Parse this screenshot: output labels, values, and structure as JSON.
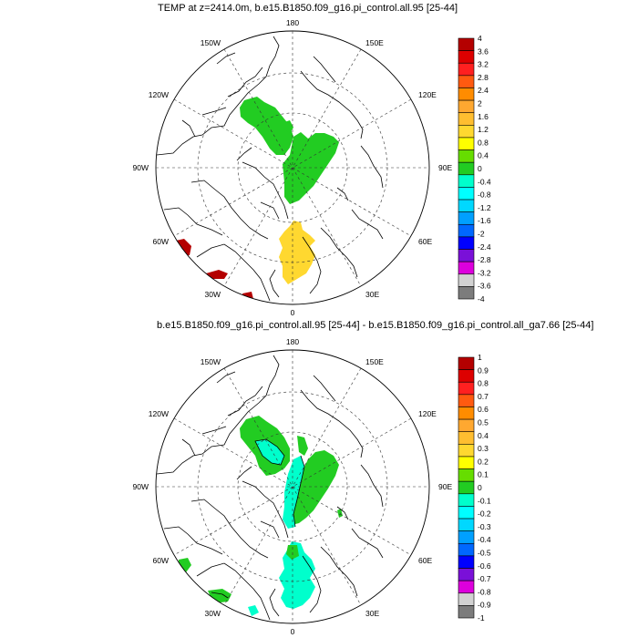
{
  "panels": [
    {
      "title": "TEMP at z=2414.0m, b.e15.B1850.f09_g16.pi_control.all.95 [25-44]",
      "lon_labels": [
        "180",
        "150E",
        "120E",
        "90E",
        "60E",
        "30E",
        "0",
        "30W",
        "60W",
        "90W",
        "120W",
        "150W"
      ],
      "colorbar": {
        "labels": [
          "4",
          "3.6",
          "3.2",
          "2.8",
          "2.4",
          "2",
          "1.6",
          "1.2",
          "0.8",
          "0.4",
          "0",
          "-0.4",
          "-0.8",
          "-1.2",
          "-1.6",
          "-2",
          "-2.4",
          "-2.8",
          "-3.2",
          "-3.6",
          "-4"
        ],
        "colors": [
          "#b40000",
          "#dd0000",
          "#ff2020",
          "#ff5a10",
          "#ff8c00",
          "#ffa830",
          "#ffbe30",
          "#ffd830",
          "#ffff00",
          "#66dd00",
          "#22cc22",
          "#00ffcc",
          "#00ffff",
          "#00d8ff",
          "#00a0ff",
          "#0068ff",
          "#0000ff",
          "#7a10d8",
          "#dd00dd",
          "#d2d2d2",
          "#7c7c7c"
        ]
      }
    },
    {
      "title": "b.e15.B1850.f09_g16.pi_control.all.95 [25-44] - b.e15.B1850.f09_g16.pi_control.all_ga7.66 [25-44]",
      "lon_labels": [
        "180",
        "150E",
        "120E",
        "90E",
        "60E",
        "30E",
        "0",
        "30W",
        "60W",
        "90W",
        "120W",
        "150W"
      ],
      "colorbar": {
        "labels": [
          "1",
          "0.9",
          "0.8",
          "0.7",
          "0.6",
          "0.5",
          "0.4",
          "0.3",
          "0.2",
          "0.1",
          "0",
          "-0.1",
          "-0.2",
          "-0.3",
          "-0.4",
          "-0.5",
          "-0.6",
          "-0.7",
          "-0.8",
          "-0.9",
          "-1"
        ],
        "colors": [
          "#b40000",
          "#dd0000",
          "#ff2020",
          "#ff5a10",
          "#ff8c00",
          "#ffa830",
          "#ffbe30",
          "#ffd830",
          "#ffff00",
          "#66dd00",
          "#22cc22",
          "#00ffcc",
          "#00ffff",
          "#00d8ff",
          "#00a0ff",
          "#0068ff",
          "#0000ff",
          "#7a10d8",
          "#dd00dd",
          "#d2d2d2",
          "#7c7c7c"
        ]
      }
    }
  ]
}
